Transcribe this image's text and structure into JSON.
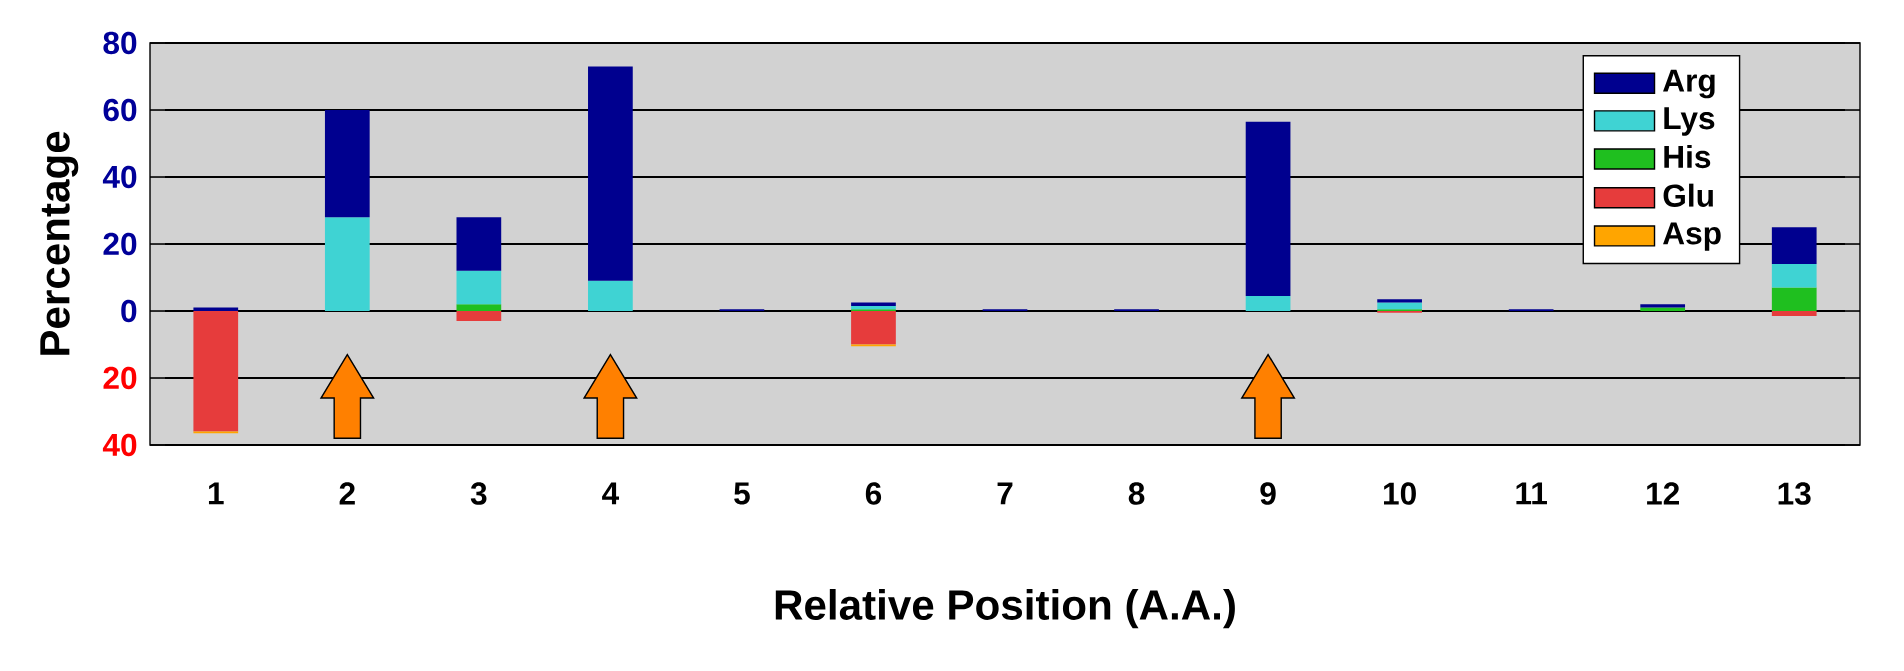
{
  "chart_data": {
    "type": "bar",
    "stacked": true,
    "xlabel": "Relative Position (A.A.)",
    "ylabel": "Percentage",
    "categories": [
      "1",
      "2",
      "3",
      "4",
      "5",
      "6",
      "7",
      "8",
      "9",
      "10",
      "11",
      "12",
      "13"
    ],
    "series": [
      {
        "name": "His",
        "color": "#1fbf1f",
        "values": [
          null,
          null,
          2,
          null,
          null,
          0.5,
          null,
          null,
          null,
          0.5,
          null,
          1,
          7
        ]
      },
      {
        "name": "Lys",
        "color": "#3fd3d3",
        "values": [
          null,
          28,
          10,
          9,
          null,
          1,
          null,
          null,
          4.5,
          2,
          null,
          null,
          7
        ]
      },
      {
        "name": "Arg",
        "color": "#00008f",
        "values": [
          1,
          32,
          16,
          64,
          0.5,
          1,
          0.5,
          0.5,
          52,
          1,
          0.5,
          1,
          11
        ]
      },
      {
        "name": "Glu",
        "color": "#e63c3c",
        "values": [
          -36,
          null,
          -3,
          null,
          null,
          -10,
          null,
          null,
          null,
          -0.5,
          null,
          null,
          -1.5
        ]
      },
      {
        "name": "Asp",
        "color": "#ffa500",
        "values": [
          -0.5,
          null,
          null,
          null,
          null,
          -0.5,
          null,
          null,
          null,
          null,
          null,
          null,
          null
        ]
      }
    ],
    "ylim": [
      -40,
      80
    ],
    "yticks": [
      {
        "value": -40,
        "label": "40"
      },
      {
        "value": -20,
        "label": "20"
      },
      0,
      20,
      40,
      60,
      80
    ],
    "grid": "y",
    "legend": "top right"
  }
}
